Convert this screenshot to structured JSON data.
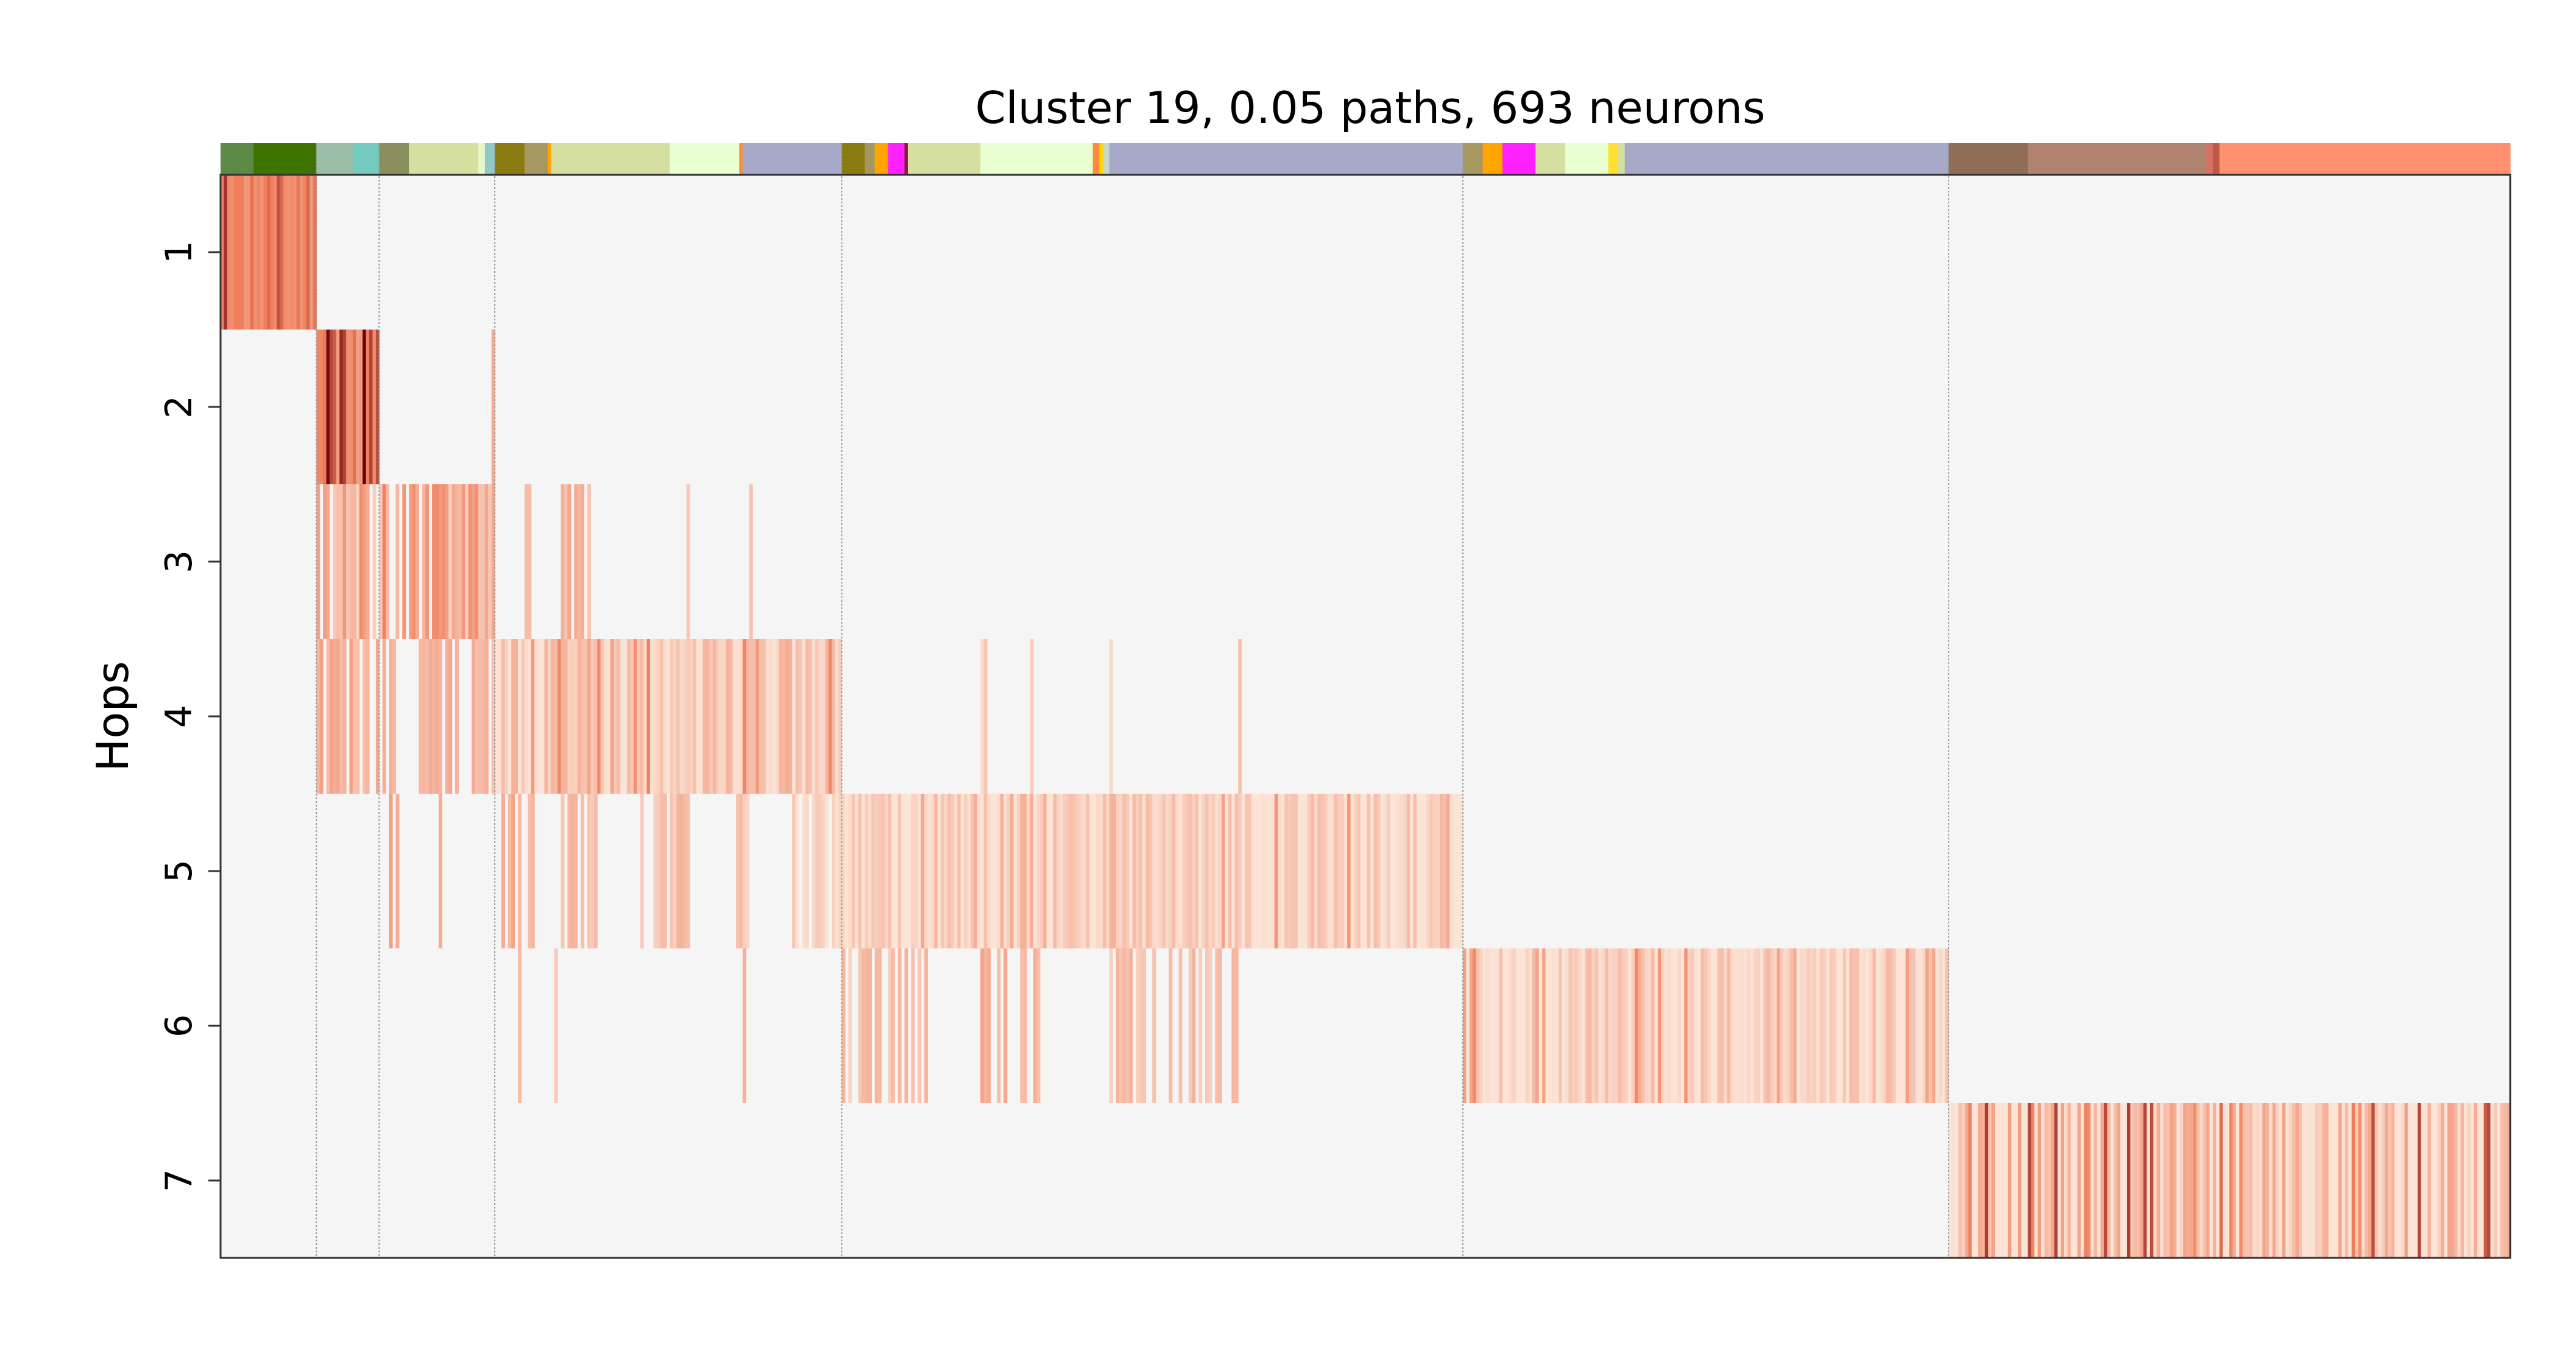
{
  "chart_data": {
    "type": "heatmap",
    "title": "Cluster 19, 0.05 paths, 693 neurons",
    "ylabel": "Hops",
    "xlabel": "",
    "y_tick_labels": [
      "1",
      "2",
      "3",
      "4",
      "5",
      "6",
      "7"
    ],
    "x_tick_labels": [],
    "columns": 693,
    "grid": false,
    "cmap_low": "#fbe3d6",
    "cmap_high": "#67000d",
    "background_color": "#f5f5f5",
    "group_boundaries": [
      29,
      48,
      83,
      188,
      376,
      523
    ],
    "hop_blocks": [
      {
        "hop": 1,
        "start": 0,
        "end": 29,
        "base": 0.55,
        "spread": 0.25
      },
      {
        "hop": 2,
        "start": 29,
        "end": 48,
        "base": 0.55,
        "spread": 0.45
      },
      {
        "hop": 3,
        "start": 29,
        "end": 83,
        "base": 0.3,
        "spread": 0.45,
        "density": 0.75
      },
      {
        "hop": 4,
        "start": 83,
        "end": 188,
        "base": 0.12,
        "spread": 0.35
      },
      {
        "hop": 5,
        "start": 188,
        "end": 376,
        "base": 0.08,
        "spread": 0.3
      },
      {
        "hop": 6,
        "start": 376,
        "end": 523,
        "base": 0.08,
        "spread": 0.35
      },
      {
        "hop": 7,
        "start": 523,
        "end": 693,
        "base": 0.12,
        "spread": 0.55
      }
    ],
    "hop_ranges": [
      {
        "hop": 2,
        "start": 82,
        "end": 83,
        "value": 0.35
      },
      {
        "hop": 3,
        "start": 92,
        "end": 94,
        "value": 0.3
      },
      {
        "hop": 3,
        "start": 103,
        "end": 114,
        "value": 0.28
      },
      {
        "hop": 3,
        "start": 139,
        "end": 142,
        "value": 0.25
      },
      {
        "hop": 3,
        "start": 160,
        "end": 161,
        "value": 0.18
      },
      {
        "hop": 4,
        "start": 29,
        "end": 83,
        "value": 0.3
      },
      {
        "hop": 4,
        "start": 188,
        "end": 189,
        "value": 0.15
      },
      {
        "hop": 4,
        "start": 199,
        "end": 200,
        "value": 0.12
      },
      {
        "hop": 4,
        "start": 208,
        "end": 209,
        "value": 0.12
      },
      {
        "hop": 4,
        "start": 230,
        "end": 232,
        "value": 0.12
      },
      {
        "hop": 4,
        "start": 244,
        "end": 247,
        "value": 0.15
      },
      {
        "hop": 4,
        "start": 268,
        "end": 270,
        "value": 0.15
      },
      {
        "hop": 4,
        "start": 306,
        "end": 309,
        "value": 0.12
      },
      {
        "hop": 5,
        "start": 40,
        "end": 41,
        "value": 0.22
      },
      {
        "hop": 5,
        "start": 51,
        "end": 54,
        "value": 0.4
      },
      {
        "hop": 5,
        "start": 66,
        "end": 67,
        "value": 0.3
      },
      {
        "hop": 5,
        "start": 84,
        "end": 97,
        "value": 0.3
      },
      {
        "hop": 5,
        "start": 101,
        "end": 115,
        "value": 0.22
      },
      {
        "hop": 5,
        "start": 127,
        "end": 142,
        "value": 0.2
      },
      {
        "hop": 5,
        "start": 151,
        "end": 160,
        "value": 0.18
      },
      {
        "hop": 5,
        "start": 172,
        "end": 188,
        "value": 0.08
      },
      {
        "hop": 6,
        "start": 53,
        "end": 54,
        "value": 0.2
      },
      {
        "hop": 6,
        "start": 90,
        "end": 91,
        "value": 0.2
      },
      {
        "hop": 6,
        "start": 101,
        "end": 102,
        "value": 0.15
      },
      {
        "hop": 6,
        "start": 136,
        "end": 138,
        "value": 0.3
      },
      {
        "hop": 6,
        "start": 158,
        "end": 159,
        "value": 0.2
      },
      {
        "hop": 6,
        "start": 188,
        "end": 214,
        "value": 0.2
      },
      {
        "hop": 6,
        "start": 230,
        "end": 248,
        "value": 0.28
      },
      {
        "hop": 6,
        "start": 268,
        "end": 308,
        "value": 0.2
      }
    ],
    "top_bar": {
      "label_width_units": 693,
      "segments": [
        {
          "start": 0,
          "end": 10,
          "color": "#5a8a45"
        },
        {
          "start": 10,
          "end": 29,
          "color": "#3f7300"
        },
        {
          "start": 29,
          "end": 40,
          "color": "#9bbfa6"
        },
        {
          "start": 40,
          "end": 48,
          "color": "#73cbc0"
        },
        {
          "start": 48,
          "end": 57,
          "color": "#8a8f5f"
        },
        {
          "start": 57,
          "end": 78,
          "color": "#d5e0a0"
        },
        {
          "start": 78,
          "end": 80,
          "color": "#e6f7c8"
        },
        {
          "start": 80,
          "end": 83,
          "color": "#8fc9c8"
        },
        {
          "start": 83,
          "end": 92,
          "color": "#8a7b10"
        },
        {
          "start": 92,
          "end": 99,
          "color": "#a69860"
        },
        {
          "start": 99,
          "end": 100,
          "color": "#ffa500"
        },
        {
          "start": 100,
          "end": 136,
          "color": "#d5e0a0"
        },
        {
          "start": 136,
          "end": 157,
          "color": "#e9ffd0"
        },
        {
          "start": 157,
          "end": 158,
          "color": "#ff8c3a"
        },
        {
          "start": 158,
          "end": 188,
          "color": "#a8a8c8"
        },
        {
          "start": 188,
          "end": 195,
          "color": "#8a7b10"
        },
        {
          "start": 195,
          "end": 198,
          "color": "#a69860"
        },
        {
          "start": 198,
          "end": 202,
          "color": "#ffa500"
        },
        {
          "start": 202,
          "end": 207,
          "color": "#ff20ff"
        },
        {
          "start": 207,
          "end": 208,
          "color": "#8a1a3a"
        },
        {
          "start": 208,
          "end": 230,
          "color": "#d5e0a0"
        },
        {
          "start": 230,
          "end": 264,
          "color": "#e9ffd0"
        },
        {
          "start": 264,
          "end": 266,
          "color": "#ff8c3a"
        },
        {
          "start": 266,
          "end": 267,
          "color": "#ffd700"
        },
        {
          "start": 267,
          "end": 269,
          "color": "#c8d8c8"
        },
        {
          "start": 269,
          "end": 376,
          "color": "#a8a8c8"
        },
        {
          "start": 376,
          "end": 382,
          "color": "#a69860"
        },
        {
          "start": 382,
          "end": 388,
          "color": "#ffa500"
        },
        {
          "start": 388,
          "end": 398,
          "color": "#ff20ff"
        },
        {
          "start": 398,
          "end": 407,
          "color": "#d5e0a0"
        },
        {
          "start": 407,
          "end": 420,
          "color": "#e9ffd0"
        },
        {
          "start": 420,
          "end": 423,
          "color": "#ffe033"
        },
        {
          "start": 423,
          "end": 425,
          "color": "#d5e0a0"
        },
        {
          "start": 425,
          "end": 523,
          "color": "#a8a8c8"
        },
        {
          "start": 523,
          "end": 547,
          "color": "#8f6e55"
        },
        {
          "start": 547,
          "end": 601,
          "color": "#b08370"
        },
        {
          "start": 601,
          "end": 603,
          "color": "#d47262"
        },
        {
          "start": 603,
          "end": 605,
          "color": "#c05848"
        },
        {
          "start": 605,
          "end": 693,
          "color": "#ff9070"
        }
      ]
    }
  }
}
